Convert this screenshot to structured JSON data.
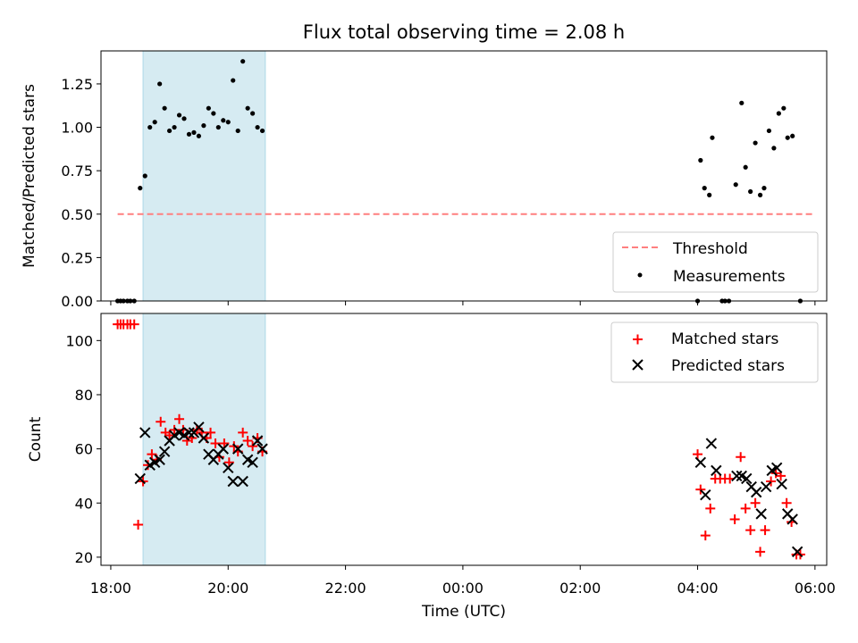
{
  "title": "Flux total observing time = 2.08 h",
  "chart_data": [
    {
      "type": "scatter",
      "ylabel": "Matched/Predicted stars",
      "ylim": [
        0,
        1.44
      ],
      "xlim": [
        "17:50",
        "06:12"
      ],
      "yticks": [
        "0.00",
        "0.25",
        "0.50",
        "0.75",
        "1.00",
        "1.25"
      ],
      "shaded_interval": [
        "18:33",
        "20:38"
      ],
      "legend_position": "lower right",
      "threshold": {
        "name": "Threshold",
        "value": 0.5,
        "x_start": "18:07",
        "x_end": "05:57",
        "color": "#ff7f7f"
      },
      "series": [
        {
          "name": "Measurements",
          "color": "#000000",
          "points": [
            [
              "18:07",
              0
            ],
            [
              "18:10",
              0
            ],
            [
              "18:13",
              0
            ],
            [
              "18:17",
              0
            ],
            [
              "18:20",
              0
            ],
            [
              "18:24",
              0
            ],
            [
              "18:30",
              0.65
            ],
            [
              "18:35",
              0.72
            ],
            [
              "18:40",
              1.0
            ],
            [
              "18:45",
              1.03
            ],
            [
              "18:50",
              1.25
            ],
            [
              "18:55",
              1.11
            ],
            [
              "19:00",
              0.98
            ],
            [
              "19:05",
              1.0
            ],
            [
              "19:10",
              1.07
            ],
            [
              "19:15",
              1.05
            ],
            [
              "19:20",
              0.96
            ],
            [
              "19:25",
              0.97
            ],
            [
              "19:30",
              0.95
            ],
            [
              "19:35",
              1.01
            ],
            [
              "19:40",
              1.11
            ],
            [
              "19:45",
              1.08
            ],
            [
              "19:50",
              1.0
            ],
            [
              "19:55",
              1.04
            ],
            [
              "20:00",
              1.03
            ],
            [
              "20:05",
              1.27
            ],
            [
              "20:10",
              0.98
            ],
            [
              "20:15",
              1.38
            ],
            [
              "20:20",
              1.11
            ],
            [
              "20:25",
              1.08
            ],
            [
              "20:30",
              1.0
            ],
            [
              "20:35",
              0.98
            ],
            [
              "04:00",
              0
            ],
            [
              "04:03",
              0.81
            ],
            [
              "04:07",
              0.65
            ],
            [
              "04:12",
              0.61
            ],
            [
              "04:15",
              0.94
            ],
            [
              "04:25",
              0
            ],
            [
              "04:28",
              0
            ],
            [
              "04:32",
              0
            ],
            [
              "04:39",
              0.67
            ],
            [
              "04:45",
              1.14
            ],
            [
              "04:49",
              0.77
            ],
            [
              "04:54",
              0.63
            ],
            [
              "04:59",
              0.91
            ],
            [
              "05:04",
              0.61
            ],
            [
              "05:08",
              0.65
            ],
            [
              "05:13",
              0.98
            ],
            [
              "05:18",
              0.88
            ],
            [
              "05:23",
              1.08
            ],
            [
              "05:28",
              1.11
            ],
            [
              "05:32",
              0.94
            ],
            [
              "05:37",
              0.95
            ],
            [
              "05:45",
              0
            ]
          ]
        }
      ]
    },
    {
      "type": "scatter",
      "xlabel": "Time (UTC)",
      "ylabel": "Count",
      "ylim": [
        17,
        110
      ],
      "xlim": [
        "17:50",
        "06:12"
      ],
      "yticks": [
        "20",
        "40",
        "60",
        "80",
        "100"
      ],
      "xticks": [
        "18:00",
        "20:00",
        "22:00",
        "00:00",
        "02:00",
        "04:00",
        "06:00"
      ],
      "shaded_interval": [
        "18:33",
        "20:38"
      ],
      "legend_position": "upper right",
      "series": [
        {
          "name": "Matched stars",
          "color": "#ff0000",
          "points": [
            [
              "18:07",
              106
            ],
            [
              "18:10",
              106
            ],
            [
              "18:13",
              106
            ],
            [
              "18:17",
              106
            ],
            [
              "18:20",
              106
            ],
            [
              "18:24",
              106
            ],
            [
              "18:28",
              32
            ],
            [
              "18:33",
              48
            ],
            [
              "18:38",
              54
            ],
            [
              "18:42",
              58
            ],
            [
              "18:47",
              56
            ],
            [
              "18:51",
              70
            ],
            [
              "18:56",
              66
            ],
            [
              "19:00",
              65
            ],
            [
              "19:05",
              67
            ],
            [
              "19:10",
              71
            ],
            [
              "19:14",
              67
            ],
            [
              "19:18",
              63
            ],
            [
              "19:23",
              64
            ],
            [
              "19:28",
              67
            ],
            [
              "19:33",
              66
            ],
            [
              "19:38",
              64
            ],
            [
              "19:42",
              66
            ],
            [
              "19:47",
              62
            ],
            [
              "19:51",
              57
            ],
            [
              "19:56",
              62
            ],
            [
              "20:01",
              55
            ],
            [
              "20:06",
              61
            ],
            [
              "20:10",
              59
            ],
            [
              "20:15",
              66
            ],
            [
              "20:20",
              63
            ],
            [
              "20:25",
              61
            ],
            [
              "20:30",
              64
            ],
            [
              "20:35",
              59
            ],
            [
              "04:00",
              58
            ],
            [
              "04:03",
              45
            ],
            [
              "04:08",
              28
            ],
            [
              "04:13",
              38
            ],
            [
              "04:18",
              49
            ],
            [
              "04:23",
              49
            ],
            [
              "04:28",
              49
            ],
            [
              "04:33",
              49
            ],
            [
              "04:38",
              34
            ],
            [
              "04:44",
              57
            ],
            [
              "04:49",
              38
            ],
            [
              "04:54",
              30
            ],
            [
              "04:59",
              40
            ],
            [
              "05:04",
              22
            ],
            [
              "05:09",
              30
            ],
            [
              "05:15",
              48
            ],
            [
              "05:20",
              51
            ],
            [
              "05:25",
              50
            ],
            [
              "05:31",
              40
            ],
            [
              "05:36",
              33
            ],
            [
              "05:41",
              21
            ],
            [
              "05:45",
              21
            ]
          ]
        },
        {
          "name": "Predicted stars",
          "color": "#000000",
          "points": [
            [
              "18:30",
              49
            ],
            [
              "18:35",
              66
            ],
            [
              "18:40",
              54
            ],
            [
              "18:45",
              55
            ],
            [
              "18:50",
              56
            ],
            [
              "18:55",
              59
            ],
            [
              "19:00",
              63
            ],
            [
              "19:05",
              65
            ],
            [
              "19:10",
              66
            ],
            [
              "19:15",
              65
            ],
            [
              "19:20",
              66
            ],
            [
              "19:25",
              66
            ],
            [
              "19:30",
              68
            ],
            [
              "19:35",
              64
            ],
            [
              "19:40",
              58
            ],
            [
              "19:45",
              56
            ],
            [
              "19:50",
              58
            ],
            [
              "19:55",
              60
            ],
            [
              "20:00",
              53
            ],
            [
              "20:05",
              48
            ],
            [
              "20:10",
              60
            ],
            [
              "20:15",
              48
            ],
            [
              "20:20",
              56
            ],
            [
              "20:25",
              55
            ],
            [
              "20:30",
              63
            ],
            [
              "20:35",
              60
            ],
            [
              "04:03",
              55
            ],
            [
              "04:08",
              43
            ],
            [
              "04:14",
              62
            ],
            [
              "04:19",
              52
            ],
            [
              "04:40",
              50
            ],
            [
              "04:45",
              50
            ],
            [
              "04:50",
              49
            ],
            [
              "04:55",
              46
            ],
            [
              "05:00",
              44
            ],
            [
              "05:05",
              36
            ],
            [
              "05:10",
              46
            ],
            [
              "05:16",
              52
            ],
            [
              "05:21",
              53
            ],
            [
              "05:26",
              47
            ],
            [
              "05:32",
              36
            ],
            [
              "05:37",
              34
            ],
            [
              "05:42",
              22
            ]
          ]
        }
      ]
    }
  ]
}
